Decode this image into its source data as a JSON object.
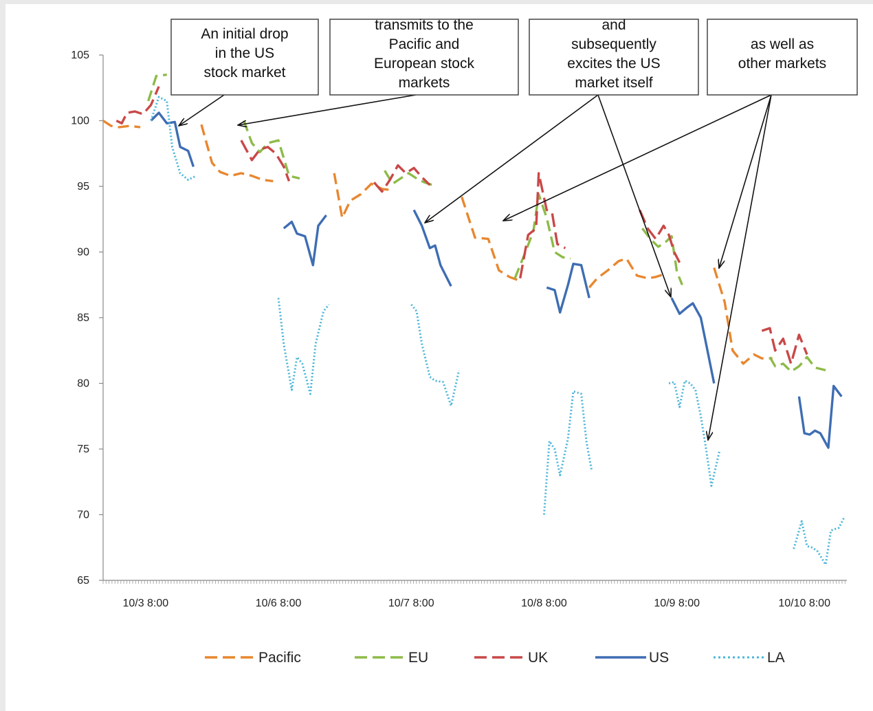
{
  "chart_data": {
    "type": "line",
    "title": "",
    "xlabel": "",
    "ylabel": "",
    "ylim": [
      65,
      105
    ],
    "y_ticks": [
      65,
      70,
      75,
      80,
      85,
      90,
      95,
      100,
      105
    ],
    "x_range": [
      0,
      28
    ],
    "x_ticks": [
      {
        "label": "10/3 8:00",
        "pos": 1.6
      },
      {
        "label": "10/6 8:00",
        "pos": 6.6
      },
      {
        "label": "10/7 8:00",
        "pos": 11.6
      },
      {
        "label": "10/8 8:00",
        "pos": 16.6
      },
      {
        "label": "10/9 8:00",
        "pos": 21.6
      },
      {
        "label": "10/10 8:00",
        "pos": 26.4
      }
    ],
    "grid": false,
    "legend_position": "bottom",
    "series": [
      {
        "name": "Pacific",
        "color": "#e8872f",
        "style": "dashed",
        "segments": [
          [
            [
              0,
              100.0
            ],
            [
              0.3,
              99.6
            ],
            [
              0.6,
              99.5
            ],
            [
              1.0,
              99.6
            ],
            [
              1.4,
              99.5
            ]
          ],
          [
            [
              3.7,
              99.7
            ],
            [
              4.1,
              96.8
            ],
            [
              4.4,
              96.1
            ],
            [
              4.8,
              95.8
            ],
            [
              5.2,
              96.0
            ],
            [
              5.6,
              95.8
            ],
            [
              6.0,
              95.5
            ],
            [
              6.4,
              95.4
            ]
          ],
          [
            [
              8.7,
              96.0
            ],
            [
              9.0,
              92.6
            ],
            [
              9.3,
              93.9
            ],
            [
              9.7,
              94.4
            ],
            [
              10.1,
              95.2
            ],
            [
              10.5,
              94.8
            ],
            [
              10.9,
              94.7
            ]
          ],
          [
            [
              13.5,
              94.2
            ],
            [
              14.0,
              91.1
            ],
            [
              14.5,
              91.0
            ],
            [
              14.9,
              88.6
            ],
            [
              15.3,
              88.1
            ],
            [
              15.7,
              87.8
            ]
          ],
          [
            [
              18.3,
              87.3
            ],
            [
              18.6,
              88.0
            ],
            [
              19.0,
              88.6
            ],
            [
              19.4,
              89.3
            ],
            [
              19.7,
              89.5
            ],
            [
              20.1,
              88.2
            ],
            [
              20.5,
              88.0
            ],
            [
              20.8,
              88.1
            ],
            [
              21.1,
              88.3
            ]
          ],
          [
            [
              23.0,
              88.8
            ],
            [
              23.4,
              86.2
            ],
            [
              23.7,
              82.5
            ],
            [
              24.1,
              81.5
            ],
            [
              24.5,
              82.2
            ],
            [
              24.8,
              81.9
            ],
            [
              25.2,
              81.9
            ]
          ]
        ]
      },
      {
        "name": "EU",
        "color": "#8dbb48",
        "style": "dashed",
        "segments": [
          [
            [
              1.7,
              101.5
            ],
            [
              2.0,
              103.4
            ],
            [
              2.4,
              103.5
            ]
          ],
          [
            [
              5.3,
              100.0
            ],
            [
              5.6,
              98.3
            ],
            [
              5.9,
              97.6
            ],
            [
              6.2,
              98.3
            ],
            [
              6.6,
              98.5
            ],
            [
              7.0,
              95.8
            ],
            [
              7.4,
              95.6
            ]
          ],
          [
            [
              10.6,
              96.2
            ],
            [
              10.9,
              95.2
            ],
            [
              11.2,
              95.6
            ],
            [
              11.5,
              96.0
            ],
            [
              11.8,
              95.6
            ],
            [
              12.1,
              95.3
            ],
            [
              12.4,
              95.1
            ]
          ],
          [
            [
              15.5,
              88.0
            ],
            [
              15.9,
              90.0
            ],
            [
              16.2,
              91.6
            ],
            [
              16.4,
              94.4
            ],
            [
              16.7,
              92.6
            ],
            [
              17.0,
              90.0
            ],
            [
              17.3,
              89.6
            ],
            [
              17.6,
              89.5
            ]
          ],
          [
            [
              20.3,
              91.8
            ],
            [
              20.6,
              91.0
            ],
            [
              20.9,
              90.4
            ],
            [
              21.2,
              90.8
            ],
            [
              21.4,
              91.2
            ],
            [
              21.6,
              88.5
            ],
            [
              21.8,
              87.5
            ]
          ],
          [
            [
              25.1,
              82.0
            ],
            [
              25.3,
              81.3
            ],
            [
              25.6,
              81.5
            ],
            [
              25.9,
              80.9
            ],
            [
              26.2,
              81.3
            ],
            [
              26.5,
              82.0
            ],
            [
              26.8,
              81.2
            ],
            [
              27.2,
              81.0
            ]
          ]
        ]
      },
      {
        "name": "UK",
        "color": "#c94848",
        "style": "dashed-long",
        "segments": [
          [
            [
              0.5,
              100.0
            ],
            [
              0.7,
              99.8
            ],
            [
              0.9,
              100.6
            ],
            [
              1.2,
              100.7
            ],
            [
              1.5,
              100.5
            ],
            [
              1.8,
              101.2
            ],
            [
              2.1,
              102.6
            ]
          ],
          [
            [
              5.2,
              98.5
            ],
            [
              5.6,
              97.0
            ],
            [
              5.9,
              97.8
            ],
            [
              6.2,
              98.0
            ],
            [
              6.5,
              97.5
            ],
            [
              6.8,
              96.5
            ],
            [
              7.0,
              95.4
            ]
          ],
          [
            [
              10.2,
              95.3
            ],
            [
              10.5,
              94.6
            ],
            [
              10.8,
              95.5
            ],
            [
              11.1,
              96.6
            ],
            [
              11.4,
              96.0
            ],
            [
              11.7,
              96.4
            ],
            [
              12.0,
              95.7
            ],
            [
              12.3,
              95.1
            ]
          ],
          [
            [
              15.7,
              88.0
            ],
            [
              16.0,
              91.3
            ],
            [
              16.3,
              91.8
            ],
            [
              16.4,
              96.0
            ],
            [
              16.7,
              93.2
            ],
            [
              16.9,
              93.0
            ],
            [
              17.1,
              90.6
            ],
            [
              17.4,
              90.3
            ]
          ],
          [
            [
              20.2,
              93.2
            ],
            [
              20.5,
              91.8
            ],
            [
              20.8,
              91.0
            ],
            [
              21.1,
              92.0
            ],
            [
              21.3,
              91.3
            ],
            [
              21.5,
              90.0
            ],
            [
              21.7,
              89.2
            ]
          ],
          [
            [
              24.8,
              84.0
            ],
            [
              25.1,
              84.2
            ],
            [
              25.3,
              82.5
            ],
            [
              25.6,
              83.4
            ],
            [
              25.9,
              81.5
            ],
            [
              26.2,
              83.7
            ],
            [
              26.5,
              82.2
            ]
          ]
        ]
      },
      {
        "name": "US",
        "color": "#3e6db3",
        "style": "solid",
        "segments": [
          [
            [
              1.8,
              100.0
            ],
            [
              2.1,
              100.6
            ],
            [
              2.4,
              99.8
            ],
            [
              2.7,
              99.9
            ],
            [
              2.9,
              98.0
            ],
            [
              3.2,
              97.7
            ],
            [
              3.4,
              96.5
            ]
          ],
          [
            [
              6.8,
              91.8
            ],
            [
              7.1,
              92.3
            ],
            [
              7.3,
              91.4
            ],
            [
              7.6,
              91.2
            ],
            [
              7.9,
              89.0
            ],
            [
              8.1,
              92.0
            ],
            [
              8.4,
              92.8
            ]
          ],
          [
            [
              11.7,
              93.2
            ],
            [
              12.0,
              92.0
            ],
            [
              12.3,
              90.3
            ],
            [
              12.5,
              90.5
            ],
            [
              12.7,
              89.0
            ],
            [
              13.1,
              87.4
            ]
          ],
          [
            [
              16.7,
              87.3
            ],
            [
              17.0,
              87.1
            ],
            [
              17.2,
              85.4
            ],
            [
              17.5,
              87.5
            ],
            [
              17.7,
              89.1
            ],
            [
              18.0,
              89.0
            ],
            [
              18.3,
              86.5
            ]
          ],
          [
            [
              21.4,
              86.5
            ],
            [
              21.7,
              85.3
            ],
            [
              22.0,
              85.8
            ],
            [
              22.2,
              86.1
            ],
            [
              22.5,
              85.0
            ],
            [
              22.8,
              82.0
            ],
            [
              23.0,
              80.0
            ]
          ],
          [
            [
              26.2,
              79.0
            ],
            [
              26.4,
              76.2
            ],
            [
              26.6,
              76.1
            ],
            [
              26.8,
              76.4
            ],
            [
              27.0,
              76.2
            ],
            [
              27.3,
              75.1
            ],
            [
              27.5,
              79.8
            ],
            [
              27.8,
              79.0
            ]
          ]
        ]
      },
      {
        "name": "LA",
        "color": "#4bb5d8",
        "style": "dotted",
        "segments": [
          [
            [
              1.8,
              100.0
            ],
            [
              2.1,
              101.8
            ],
            [
              2.4,
              101.5
            ],
            [
              2.6,
              98.0
            ],
            [
              2.9,
              96.0
            ],
            [
              3.2,
              95.5
            ],
            [
              3.5,
              95.8
            ]
          ],
          [
            [
              6.6,
              86.5
            ],
            [
              6.8,
              83.0
            ],
            [
              7.1,
              79.5
            ],
            [
              7.3,
              82.0
            ],
            [
              7.5,
              81.5
            ],
            [
              7.8,
              79.2
            ],
            [
              8.0,
              83.0
            ],
            [
              8.3,
              85.5
            ],
            [
              8.5,
              86.0
            ]
          ],
          [
            [
              11.6,
              86.0
            ],
            [
              11.8,
              85.5
            ],
            [
              12.0,
              83.0
            ],
            [
              12.3,
              80.5
            ],
            [
              12.5,
              80.2
            ],
            [
              12.8,
              80.1
            ],
            [
              13.1,
              78.3
            ],
            [
              13.4,
              81.0
            ]
          ],
          [
            [
              16.6,
              70.0
            ],
            [
              16.8,
              75.6
            ],
            [
              17.0,
              75.0
            ],
            [
              17.2,
              73.0
            ],
            [
              17.5,
              75.8
            ],
            [
              17.7,
              79.4
            ],
            [
              18.0,
              79.2
            ],
            [
              18.2,
              75.5
            ],
            [
              18.4,
              73.3
            ]
          ],
          [
            [
              21.3,
              80.0
            ],
            [
              21.5,
              80.1
            ],
            [
              21.7,
              78.2
            ],
            [
              21.9,
              80.2
            ],
            [
              22.1,
              80.0
            ],
            [
              22.3,
              79.5
            ],
            [
              22.5,
              77.5
            ],
            [
              22.7,
              75.0
            ],
            [
              22.9,
              72.2
            ],
            [
              23.2,
              74.8
            ]
          ],
          [
            [
              26.0,
              67.4
            ],
            [
              26.3,
              69.5
            ],
            [
              26.5,
              67.6
            ],
            [
              26.7,
              67.5
            ],
            [
              26.9,
              67.2
            ],
            [
              27.2,
              66.2
            ],
            [
              27.4,
              68.8
            ],
            [
              27.7,
              69.0
            ],
            [
              27.9,
              69.8
            ]
          ]
        ]
      }
    ],
    "annotations": [
      {
        "lines": [
          "An initial drop",
          "in the US",
          "stock market"
        ]
      },
      {
        "lines": [
          "transmits to the",
          "Pacific and",
          "European stock",
          "markets"
        ]
      },
      {
        "lines": [
          "and",
          "subsequently",
          "excites the US",
          "market itself"
        ]
      },
      {
        "lines": [
          "as well as",
          "other markets"
        ]
      }
    ]
  }
}
